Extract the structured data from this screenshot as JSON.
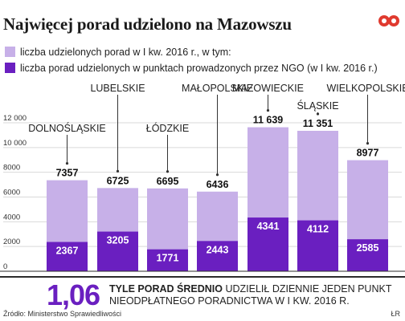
{
  "header": {
    "title": "Najwięcej porad udzielono na Mazowszu"
  },
  "legend": [
    {
      "label": "liczba udzielonych porad w I kw. 2016 r., w tym:",
      "color": "#c7b0e8"
    },
    {
      "label": "liczba porad udzielonych w punktach prowadzonych przez NGO (w I kw. 2016 r.)",
      "color": "#6a1fc0"
    }
  ],
  "chart_data": {
    "type": "bar",
    "categories": [
      "DOLNOŚLĄSKIE",
      "LUBELSKIE",
      "ŁÓDZKIE",
      "MAŁOPOLSKIE",
      "MAZOWIECKIE",
      "ŚLĄSKIE",
      "WIELKOPOLSKIE"
    ],
    "series": [
      {
        "name": "liczba udzielonych porad w I kw. 2016 r., w tym:",
        "values": [
          7357,
          6725,
          6695,
          6436,
          11639,
          11351,
          8977
        ]
      },
      {
        "name": "liczba porad udzielonych w punktach prowadzonych przez NGO (w I kw. 2016 r.)",
        "values": [
          2367,
          3205,
          1771,
          2443,
          4341,
          4112,
          2585
        ]
      }
    ],
    "total_labels": [
      "7357",
      "6725",
      "6695",
      "6436",
      "11 639",
      "11 351",
      "8977"
    ],
    "ngo_labels": [
      "2367",
      "3205",
      "1771",
      "2443",
      "4341",
      "4112",
      "2585"
    ],
    "yticks": [
      0,
      2000,
      4000,
      6000,
      8000,
      10000,
      12000
    ],
    "ytick_labels": [
      "0",
      "2000",
      "4000",
      "6000",
      "8000",
      "10 000",
      "12 000"
    ],
    "ylim": [
      0,
      12000
    ],
    "grid": true,
    "colors": {
      "total": "#c7b0e8",
      "ngo": "#6a1fc0",
      "grid": "#d9d9d9"
    }
  },
  "summary": {
    "value": "1,06",
    "bold_text": "TYLE PORAD ŚREDNIO",
    "text_line1": " UDZIELIŁ DZIENNIE JEDEN PUNKT",
    "text_line2": "NIEODPŁATNEGO PORADNICTWA W I KW. 2016 R."
  },
  "footer": {
    "source": "Źródło: Ministerstwo Sprawiedliwości",
    "credit": "ŁR"
  }
}
